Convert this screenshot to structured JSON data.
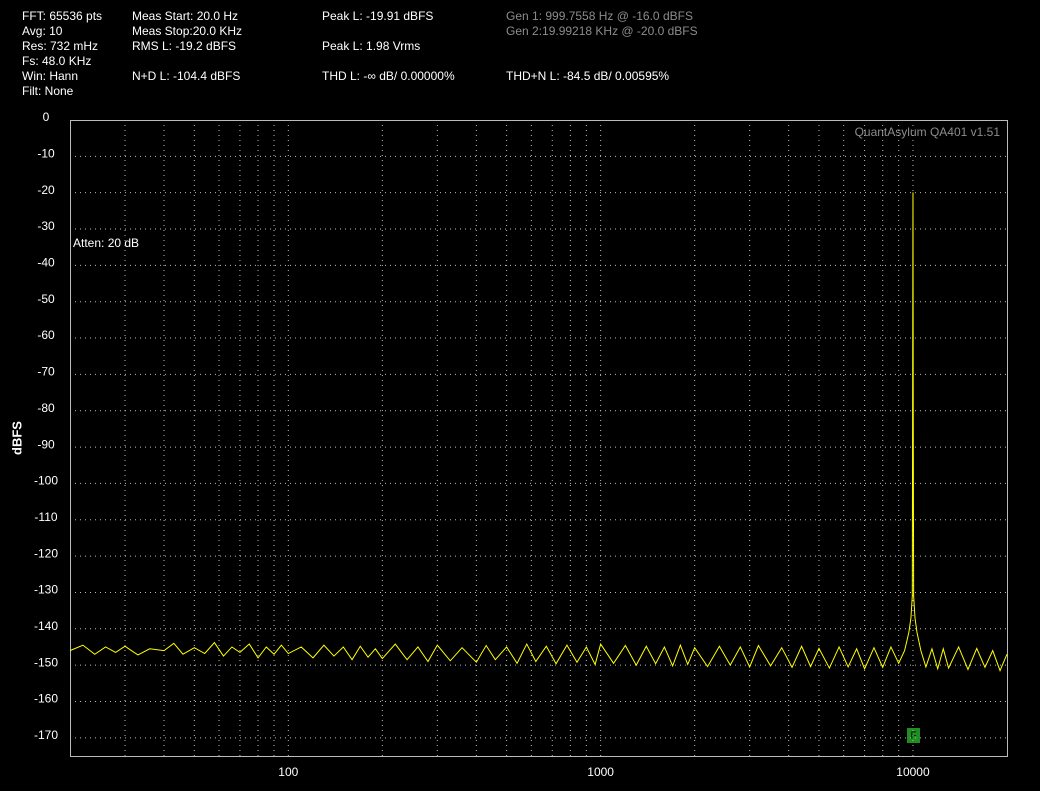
{
  "chart_data": {
    "type": "line",
    "readouts": [
      "FFT: 65536 pts",
      "Avg: 10",
      "Res: 732 mHz",
      "Fs: 48.0 KHz",
      "Win: Hann",
      "Filt: None",
      "Meas Start: 20.0 Hz",
      "Meas Stop:20.0 KHz",
      "RMS L: -19.2 dBFS",
      "N+D L: -104.4 dBFS",
      "Peak L: -19.91 dBFS",
      "Peak L: 1.98 Vrms",
      "THD L: -∞ dB/ 0.00000%",
      "Gen 1: 999.7558 Hz @ -16.0  dBFS",
      "Gen 2:19.99218 KHz @ -20.0  dBFS",
      "THD+N L: -84.5 dB/ 0.00595%"
    ],
    "watermark": "QuantAsylum QA401 v1.51",
    "annotation": "Atten: 20 dB",
    "marker": "F",
    "y_label": "dBFS",
    "xscale": "log",
    "xlim": [
      20,
      20000
    ],
    "ylim": [
      -175,
      0
    ],
    "xticks": [
      100,
      1000,
      10000
    ],
    "xminor": [
      30,
      40,
      50,
      60,
      70,
      80,
      90,
      200,
      300,
      400,
      500,
      600,
      700,
      800,
      900,
      2000,
      3000,
      4000,
      5000,
      6000,
      7000,
      8000,
      9000
    ],
    "yticks": [
      0,
      -10,
      -20,
      -30,
      -40,
      -50,
      -60,
      -70,
      -80,
      -90,
      -100,
      -110,
      -120,
      -130,
      -140,
      -150,
      -160,
      -170
    ],
    "grid": true,
    "series": [
      {
        "name": "L",
        "color": "#ffff00",
        "x": [
          20,
          22,
          24,
          26,
          28,
          30,
          33,
          36,
          40,
          43,
          46,
          50,
          54,
          58,
          62,
          66,
          70,
          75,
          80,
          85,
          90,
          95,
          100,
          110,
          120,
          130,
          140,
          150,
          160,
          170,
          180,
          190,
          200,
          220,
          240,
          260,
          280,
          300,
          330,
          360,
          400,
          430,
          460,
          500,
          540,
          580,
          620,
          670,
          720,
          780,
          840,
          900,
          960,
          1000,
          1100,
          1200,
          1300,
          1400,
          1500,
          1600,
          1700,
          1800,
          1900,
          2000,
          2200,
          2400,
          2600,
          2800,
          3000,
          3200,
          3500,
          3800,
          4100,
          4400,
          4700,
          5000,
          5400,
          5800,
          6200,
          6600,
          7000,
          7500,
          8000,
          8500,
          9000,
          9400,
          9700,
          9850,
          9950,
          10000,
          10020,
          10050,
          10150,
          10300,
          10600,
          11000,
          11500,
          12000,
          12500,
          13000,
          14000,
          15000,
          16000,
          17000,
          18000,
          19000,
          20000
        ],
        "values": [
          -146,
          -144.5,
          -147,
          -145,
          -146.5,
          -144.8,
          -147.2,
          -145.5,
          -146,
          -144,
          -147,
          -145.2,
          -146.8,
          -143.8,
          -147.5,
          -145,
          -146.5,
          -144.2,
          -148,
          -145,
          -147,
          -144.5,
          -146.8,
          -145,
          -148,
          -144.5,
          -147.5,
          -145,
          -148.5,
          -144.8,
          -147.8,
          -145.5,
          -148.2,
          -144.2,
          -148.5,
          -145,
          -149,
          -144.5,
          -148.8,
          -145.2,
          -149.2,
          -144.6,
          -148.5,
          -145,
          -149.5,
          -144.2,
          -149,
          -144.8,
          -149.6,
          -144.5,
          -149.2,
          -145,
          -149.8,
          -144.2,
          -149.5,
          -144.6,
          -150,
          -144.8,
          -149.6,
          -145,
          -150.2,
          -144.5,
          -149.8,
          -145.2,
          -150.4,
          -144.8,
          -150,
          -145,
          -150.5,
          -144.6,
          -150.2,
          -145.2,
          -150.6,
          -144.8,
          -150.4,
          -145.4,
          -150.8,
          -145,
          -150.5,
          -145.5,
          -151,
          -145.2,
          -150.6,
          -145,
          -149.5,
          -146,
          -141,
          -137,
          -131,
          -19.91,
          -82,
          -131,
          -137,
          -141,
          -146,
          -150.5,
          -145.5,
          -151,
          -145.5,
          -150.8,
          -145,
          -151.2,
          -145.4,
          -150.6,
          -146,
          -151.5,
          -147
        ]
      }
    ]
  }
}
